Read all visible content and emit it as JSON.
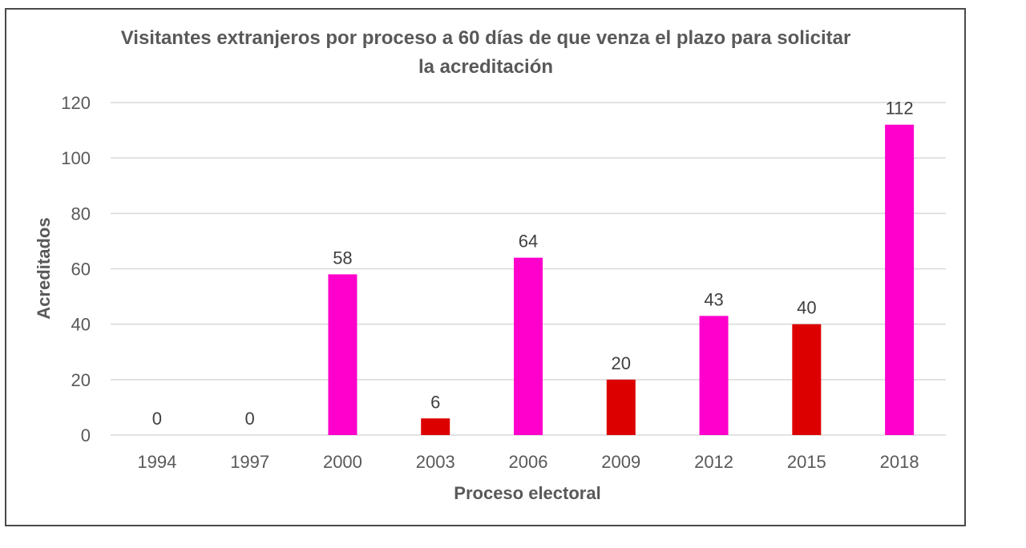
{
  "chart_data": {
    "type": "bar",
    "title_lines": [
      "Visitantes extranjeros por proceso a 60 días de que venza el plazo para solicitar",
      "la acreditación"
    ],
    "xlabel": "Proceso electoral",
    "ylabel": "Acreditados",
    "categories": [
      "1994",
      "1997",
      "2000",
      "2003",
      "2006",
      "2009",
      "2012",
      "2015",
      "2018"
    ],
    "values": [
      0,
      0,
      58,
      6,
      64,
      20,
      43,
      40,
      112
    ],
    "bar_colors": [
      "#ff00cc",
      "#ff00cc",
      "#ff00cc",
      "#dd0000",
      "#ff00cc",
      "#dd0000",
      "#ff00cc",
      "#dd0000",
      "#ff00cc"
    ],
    "data_labels": [
      "0",
      "0",
      "58",
      "6",
      "64",
      "20",
      "43",
      "40",
      "112"
    ],
    "ylim": [
      0,
      120
    ],
    "yticks": [
      0,
      20,
      40,
      60,
      80,
      100,
      120
    ],
    "grid": true,
    "legend": "none"
  }
}
